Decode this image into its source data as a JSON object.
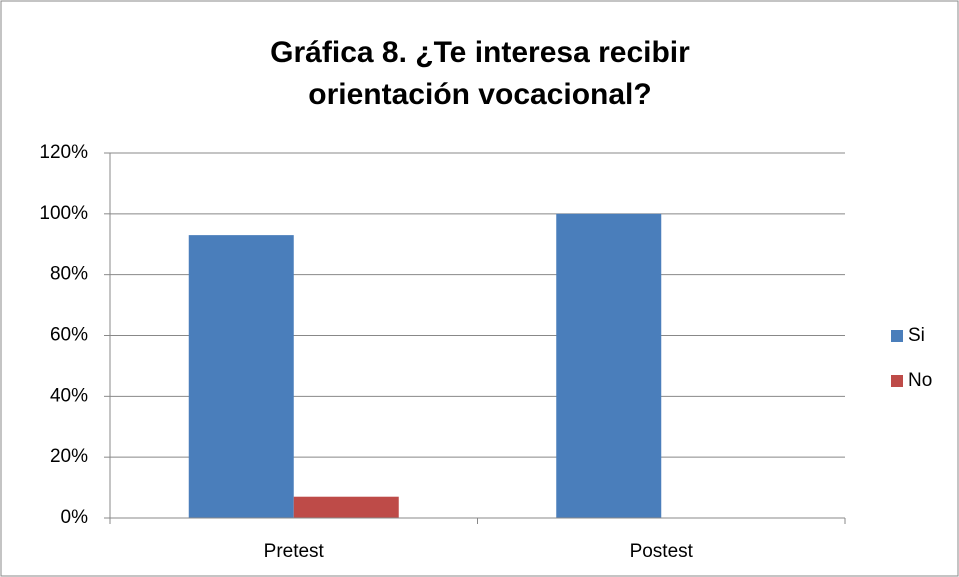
{
  "chart_data": {
    "type": "bar",
    "title": "Gráfica 8. ¿Te interesa recibir orientación vocacional?",
    "categories": [
      "Pretest",
      "Postest"
    ],
    "series": [
      {
        "name": "Si",
        "color": "#4a7ebb",
        "values": [
          93,
          100
        ]
      },
      {
        "name": "No",
        "color": "#be4b48",
        "values": [
          7,
          0
        ]
      }
    ],
    "ylim": [
      0,
      120
    ],
    "yticks": [
      {
        "value": 0,
        "label": "0%"
      },
      {
        "value": 20,
        "label": "20%"
      },
      {
        "value": 40,
        "label": "40%"
      },
      {
        "value": 60,
        "label": "60%"
      },
      {
        "value": 80,
        "label": "80%"
      },
      {
        "value": 100,
        "label": "100%"
      },
      {
        "value": 120,
        "label": "120%"
      }
    ],
    "grid": true,
    "legend": "right"
  }
}
